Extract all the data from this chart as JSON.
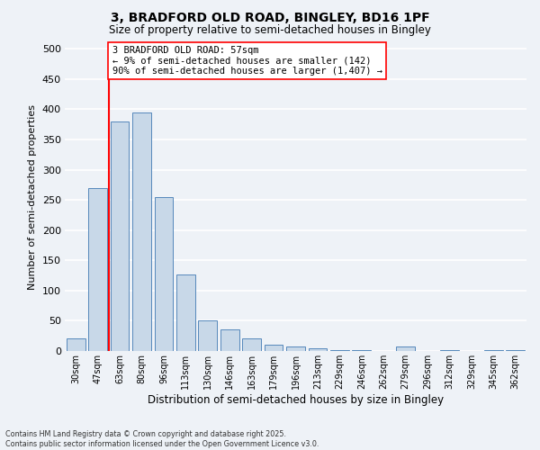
{
  "title1": "3, BRADFORD OLD ROAD, BINGLEY, BD16 1PF",
  "title2": "Size of property relative to semi-detached houses in Bingley",
  "xlabel": "Distribution of semi-detached houses by size in Bingley",
  "ylabel": "Number of semi-detached properties",
  "bar_labels": [
    "30sqm",
    "47sqm",
    "63sqm",
    "80sqm",
    "96sqm",
    "113sqm",
    "130sqm",
    "146sqm",
    "163sqm",
    "179sqm",
    "196sqm",
    "213sqm",
    "229sqm",
    "246sqm",
    "262sqm",
    "279sqm",
    "296sqm",
    "312sqm",
    "329sqm",
    "345sqm",
    "362sqm"
  ],
  "bar_values": [
    21,
    270,
    379,
    394,
    254,
    126,
    50,
    35,
    21,
    10,
    7,
    5,
    2,
    1,
    0,
    7,
    0,
    2,
    0,
    1,
    2
  ],
  "bar_color": "#c8d8e8",
  "bar_edge_color": "#5588bb",
  "vline_x_index": 1.5,
  "property_label": "3 BRADFORD OLD ROAD: 57sqm",
  "annotation_line1": "← 9% of semi-detached houses are smaller (142)",
  "annotation_line2": "90% of semi-detached houses are larger (1,407) →",
  "ylim": [
    0,
    510
  ],
  "yticks": [
    0,
    50,
    100,
    150,
    200,
    250,
    300,
    350,
    400,
    450,
    500
  ],
  "bg_color": "#eef2f7",
  "grid_color": "#ffffff",
  "footer1": "Contains HM Land Registry data © Crown copyright and database right 2025.",
  "footer2": "Contains public sector information licensed under the Open Government Licence v3.0."
}
